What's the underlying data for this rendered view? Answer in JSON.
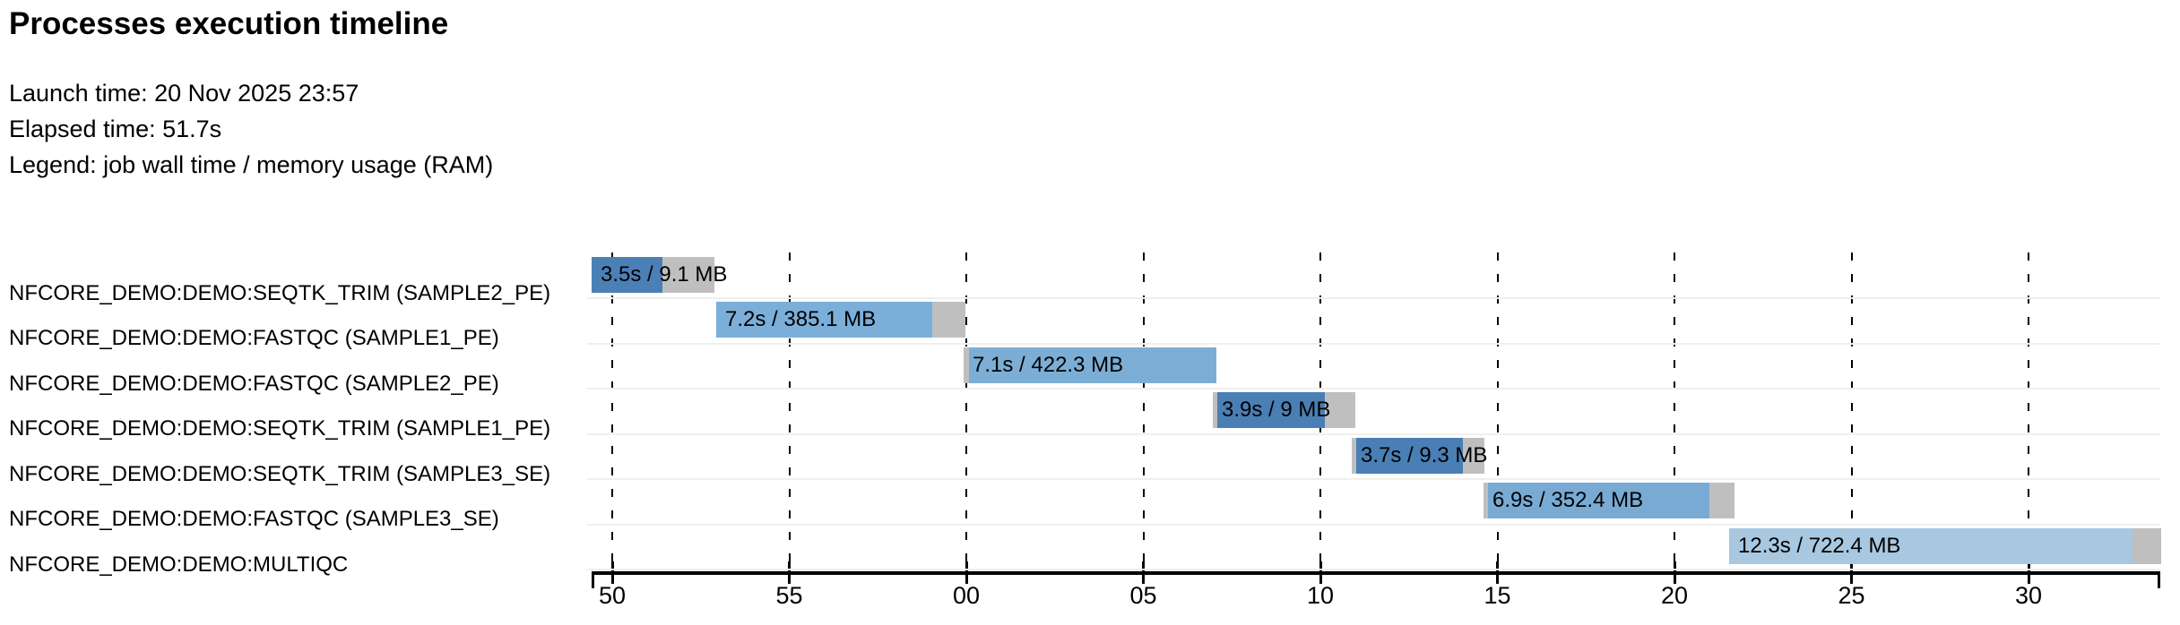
{
  "title": "Processes execution timeline",
  "meta": {
    "launch": "Launch time: 20 Nov 2025 23:57",
    "elapsed": "Elapsed time: 51.7s",
    "legend": "Legend: job wall time / memory usage (RAM)"
  },
  "colors": {
    "gray_segment": "#bfbfbf",
    "row_separator": "#efefef",
    "axis": "#000000",
    "bar_dark_blue": "#4b80b6",
    "bar_medium_blue": "#7baed9",
    "bar_pale_blue": "#a8c8e1"
  },
  "chart_data": {
    "type": "bar",
    "variant": "horizontal-gantt-process-timeline",
    "title": "Processes execution timeline",
    "launch_time": "20 Nov 2025 23:57",
    "elapsed_time_s": 51.7,
    "legend": "job wall time / memory usage (RAM)",
    "x_axis": {
      "unit": "clock seconds (mm:ss tick labels)",
      "domain_s": [
        49.44,
        93.72
      ],
      "gridlines": "dashed-vertical",
      "ticks": [
        {
          "label": "50",
          "t": 50
        },
        {
          "label": "55",
          "t": 55
        },
        {
          "label": "00",
          "t": 60
        },
        {
          "label": "05",
          "t": 65
        },
        {
          "label": "10",
          "t": 70
        },
        {
          "label": "15",
          "t": 75
        },
        {
          "label": "20",
          "t": 80
        },
        {
          "label": "25",
          "t": 85
        },
        {
          "label": "30",
          "t": 90
        }
      ]
    },
    "rows": [
      {
        "label": "NFCORE_DEMO:DEMO:SEQTK_TRIM (SAMPLE2_PE)",
        "bar_label": "3.5s / 9.1 MB",
        "wall_time": "3.5s",
        "memory": "9.1 MB",
        "color": "#4b80b6",
        "segments": [
          {
            "kind": "colored",
            "t0": 49.42,
            "t1": 51.42
          },
          {
            "kind": "gray-tail",
            "t0": 51.42,
            "t1": 52.89
          }
        ]
      },
      {
        "label": "NFCORE_DEMO:DEMO:FASTQC (SAMPLE1_PE)",
        "bar_label": "7.2s / 385.1 MB",
        "wall_time": "7.2s",
        "memory": "385.1 MB",
        "color": "#7baed9",
        "segments": [
          {
            "kind": "colored",
            "t0": 52.94,
            "t1": 59.04
          },
          {
            "kind": "gray-tail",
            "t0": 59.04,
            "t1": 59.97
          }
        ]
      },
      {
        "label": "NFCORE_DEMO:DEMO:FASTQC (SAMPLE2_PE)",
        "bar_label": "7.1s / 422.3 MB",
        "wall_time": "7.1s",
        "memory": "422.3 MB",
        "color": "#7caed5",
        "segments": [
          {
            "kind": "gray-lead",
            "t0": 59.92,
            "t1": 60.08
          },
          {
            "kind": "colored",
            "t0": 60.08,
            "t1": 67.06
          }
        ]
      },
      {
        "label": "NFCORE_DEMO:DEMO:SEQTK_TRIM (SAMPLE1_PE)",
        "bar_label": "3.9s / 9 MB",
        "wall_time": "3.9s",
        "memory": "9 MB",
        "color": "#497fb4",
        "segments": [
          {
            "kind": "gray-lead",
            "t0": 66.96,
            "t1": 67.09
          },
          {
            "kind": "colored",
            "t0": 67.09,
            "t1": 70.13
          },
          {
            "kind": "gray-tail",
            "t0": 70.13,
            "t1": 70.99
          }
        ]
      },
      {
        "label": "NFCORE_DEMO:DEMO:SEQTK_TRIM (SAMPLE3_SE)",
        "bar_label": "3.7s / 9.3 MB",
        "wall_time": "3.7s",
        "memory": "9.3 MB",
        "color": "#4a7fb5",
        "segments": [
          {
            "kind": "gray-lead",
            "t0": 70.89,
            "t1": 71.01
          },
          {
            "kind": "colored",
            "t0": 71.01,
            "t1": 74.03
          },
          {
            "kind": "gray-tail",
            "t0": 74.03,
            "t1": 74.63
          }
        ]
      },
      {
        "label": "NFCORE_DEMO:DEMO:FASTQC (SAMPLE3_SE)",
        "bar_label": "6.9s / 352.4 MB",
        "wall_time": "6.9s",
        "memory": "352.4 MB",
        "color": "#78aad4",
        "segments": [
          {
            "kind": "gray-lead",
            "t0": 74.61,
            "t1": 74.73
          },
          {
            "kind": "colored",
            "t0": 74.73,
            "t1": 80.99
          },
          {
            "kind": "gray-tail",
            "t0": 80.99,
            "t1": 81.7
          }
        ]
      },
      {
        "label": "NFCORE_DEMO:DEMO:MULTIQC",
        "bar_label": "12.3s / 722.4 MB",
        "wall_time": "12.3s",
        "memory": "722.4 MB",
        "color": "#a8c8e1",
        "segments": [
          {
            "kind": "colored",
            "t0": 81.54,
            "t1": 92.94
          },
          {
            "kind": "gray-tail",
            "t0": 92.94,
            "t1": 93.75
          }
        ]
      }
    ]
  }
}
